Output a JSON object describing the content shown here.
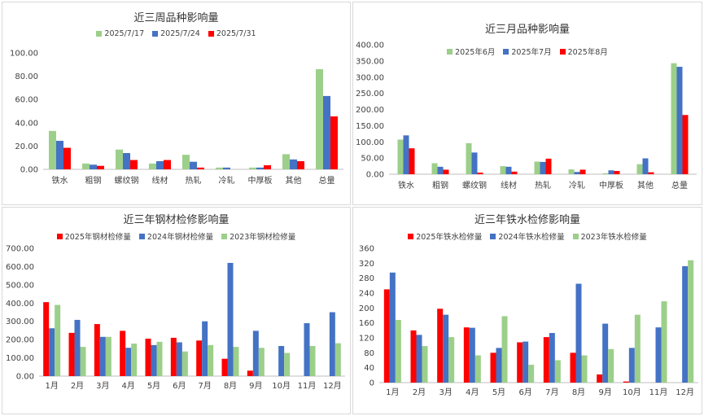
{
  "colors": {
    "green": "#9ccf8a",
    "blue": "#4472c4",
    "red": "#ff0000",
    "axis": "#bfbfbf",
    "text": "#404040"
  },
  "chart_data": [
    {
      "type": "bar",
      "title": "近三周品种影响量",
      "categories": [
        "铁水",
        "粗钢",
        "螺纹钢",
        "线材",
        "热轧",
        "冷轧",
        "中厚板",
        "其他",
        "总量"
      ],
      "ylim": [
        0,
        100
      ],
      "yticks": [
        "0.00",
        "20.00",
        "40.00",
        "60.00",
        "80.00",
        "100.00"
      ],
      "legend_position": "top",
      "series": [
        {
          "name": "2025/7/17",
          "color": "green",
          "values": [
            33,
            5,
            17,
            5,
            12.5,
            1.5,
            1.5,
            13,
            86
          ]
        },
        {
          "name": "2025/7/24",
          "color": "blue",
          "values": [
            24.5,
            4,
            14,
            7,
            6.5,
            1.5,
            1.5,
            8.5,
            63
          ]
        },
        {
          "name": "2025/7/31",
          "color": "red",
          "values": [
            18.5,
            3,
            8,
            8,
            1.5,
            0,
            3.5,
            7,
            45.5
          ]
        }
      ]
    },
    {
      "type": "bar",
      "title": "近三月品种影响量",
      "categories": [
        "铁水",
        "粗钢",
        "螺纹钢",
        "线材",
        "热轧",
        "冷轧",
        "中厚板",
        "其他",
        "总量"
      ],
      "ylim": [
        0,
        400
      ],
      "yticks": [
        "0.00",
        "50.00",
        "100.00",
        "150.00",
        "200.00",
        "250.00",
        "300.00",
        "350.00",
        "400.00"
      ],
      "legend_position": "top",
      "series": [
        {
          "name": "2025年6月",
          "color": "green",
          "values": [
            107,
            34,
            96,
            25,
            39,
            15,
            3,
            31,
            343
          ]
        },
        {
          "name": "2025年7月",
          "color": "blue",
          "values": [
            120,
            23,
            67,
            23,
            38,
            7,
            12,
            49,
            332
          ]
        },
        {
          "name": "2025年8月",
          "color": "red",
          "values": [
            80,
            14,
            5,
            8,
            48,
            14,
            10,
            6,
            183
          ]
        }
      ]
    },
    {
      "type": "bar",
      "title": "近三年钢材检修影响量",
      "categories": [
        "1月",
        "2月",
        "3月",
        "4月",
        "5月",
        "6月",
        "7月",
        "8月",
        "9月",
        "10月",
        "11月",
        "12月"
      ],
      "ylim": [
        0,
        700
      ],
      "yticks": [
        "0.00",
        "100.00",
        "200.00",
        "300.00",
        "400.00",
        "500.00",
        "600.00",
        "700.00"
      ],
      "legend_position": "top",
      "series": [
        {
          "name": "2025年钢材检修量",
          "color": "red",
          "values": [
            405,
            237,
            285,
            248,
            205,
            210,
            195,
            95,
            30,
            0,
            0,
            0
          ]
        },
        {
          "name": "2024年钢材检修量",
          "color": "blue",
          "values": [
            262,
            308,
            215,
            155,
            170,
            185,
            300,
            620,
            248,
            165,
            290,
            350
          ]
        },
        {
          "name": "2023年钢材检修量",
          "color": "green",
          "values": [
            390,
            160,
            215,
            178,
            188,
            135,
            170,
            160,
            155,
            127,
            165,
            180
          ]
        }
      ]
    },
    {
      "type": "bar",
      "title": "近三年铁水检修影响量",
      "categories": [
        "1月",
        "2月",
        "3月",
        "4月",
        "5月",
        "6月",
        "7月",
        "8月",
        "9月",
        "10月",
        "11月",
        "12月"
      ],
      "ylim": [
        0,
        360
      ],
      "yticks": [
        "0",
        "40",
        "80",
        "120",
        "160",
        "200",
        "240",
        "280",
        "320",
        "360"
      ],
      "legend_position": "top",
      "series": [
        {
          "name": "2025年铁水检修量",
          "color": "red",
          "values": [
            250,
            140,
            198,
            148,
            80,
            108,
            122,
            80,
            22,
            3,
            0,
            0
          ]
        },
        {
          "name": "2024年铁水检修量",
          "color": "blue",
          "values": [
            295,
            128,
            182,
            147,
            93,
            110,
            133,
            265,
            158,
            93,
            148,
            312
          ]
        },
        {
          "name": "2023年铁水检修量",
          "color": "green",
          "values": [
            168,
            98,
            122,
            73,
            178,
            48,
            60,
            73,
            90,
            182,
            218,
            328
          ]
        }
      ]
    }
  ]
}
